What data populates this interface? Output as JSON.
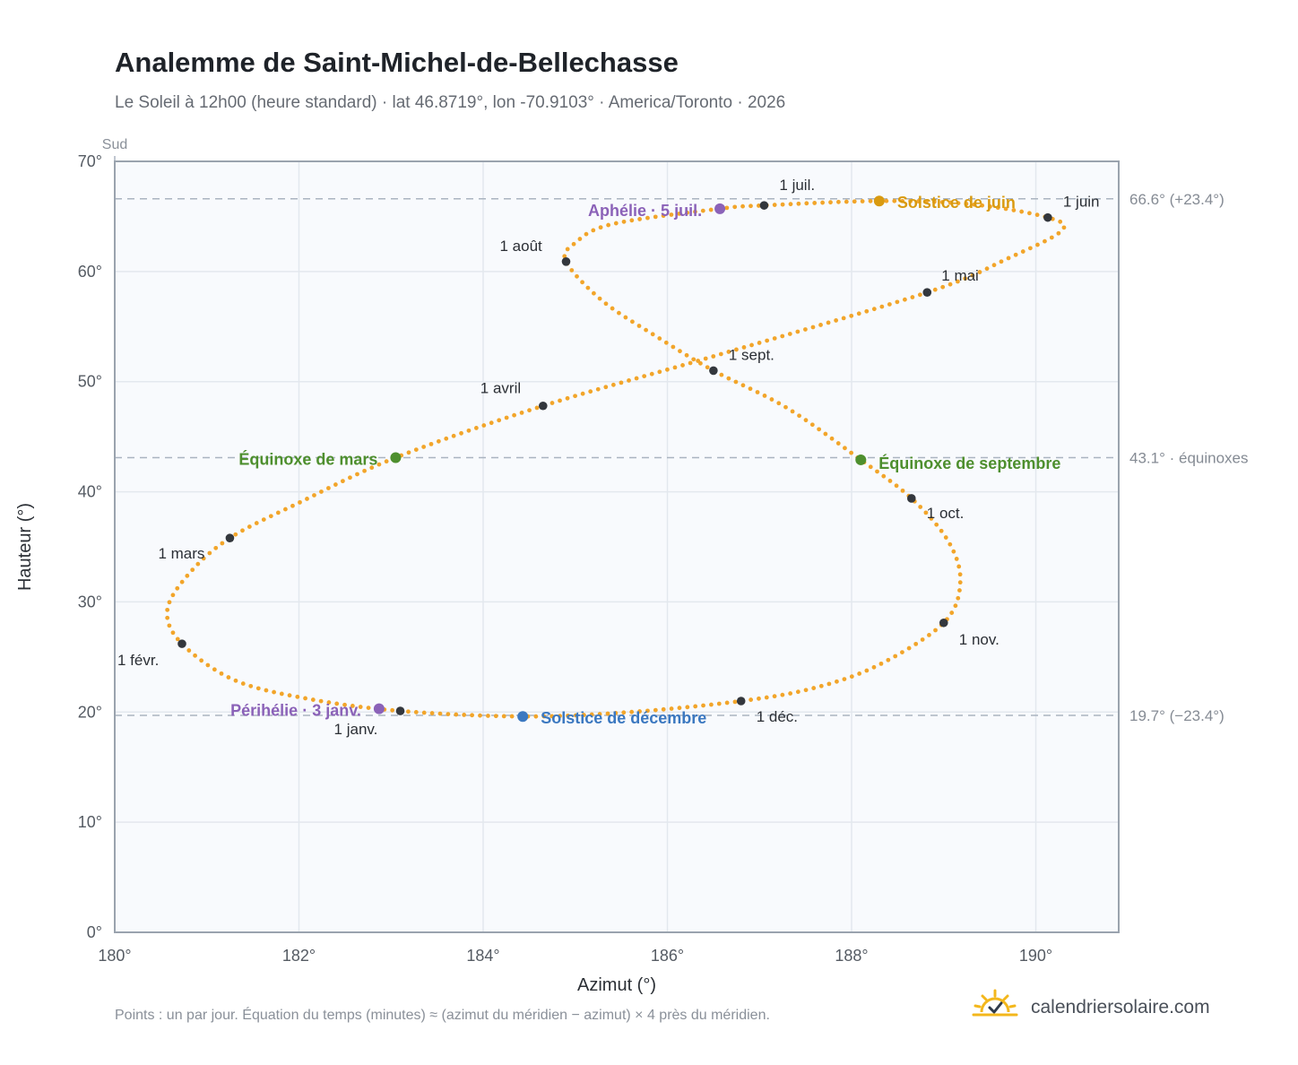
{
  "header": {
    "title": "Analemme de Saint-Michel-de-Bellechasse",
    "subtitle": "Le Soleil à 12h00 (heure standard) · lat 46.8719°, lon -70.9103° · America/Toronto · 2026"
  },
  "footer": {
    "note": "Points : un par jour. Équation du temps (minutes) ≈ (azimut du méridien − azimut) × 4 près du méridien.",
    "brand": "calendriersolaire.com",
    "brand_icon": "sun-check-icon"
  },
  "colors": {
    "path": "#f2a52a",
    "month_dot": "#33373d",
    "solstice_june": "#d99a10",
    "solstice_december": "#3b78c0",
    "equinox": "#4e8f2e",
    "perihelion": "#8b62b8",
    "grid": "#e3e8ee",
    "reference_line": "#aab4c0",
    "plot_background": "#f8fafd",
    "frame": "#9aa3ae"
  },
  "chart_data": {
    "type": "scatter",
    "title": "Analemme de Saint-Michel-de-Bellechasse",
    "xlabel": "Azimut (°)",
    "ylabel": "Hauteur (°)",
    "xlim": [
      180,
      190.9
    ],
    "ylim": [
      0,
      70
    ],
    "x_ticks": [
      180,
      182,
      184,
      186,
      188,
      190
    ],
    "y_ticks": [
      0,
      10,
      20,
      30,
      40,
      50,
      60,
      70
    ],
    "x_tick_labels": [
      "180°",
      "182°",
      "184°",
      "186°",
      "188°",
      "190°"
    ],
    "y_tick_labels": [
      "0°",
      "10°",
      "20°",
      "30°",
      "40°",
      "50°",
      "60°",
      "70°"
    ],
    "grid": true,
    "meridian_label": "Sud",
    "reference_lines": [
      {
        "y": 66.6,
        "label": "66.6° (+23.4°)"
      },
      {
        "y": 43.1,
        "label": "43.1° · équinoxes"
      },
      {
        "y": 19.7,
        "label": "19.7° (−23.4°)"
      }
    ],
    "monthly_points": [
      {
        "label": "1 janv.",
        "x": 183.1,
        "y": 20.1
      },
      {
        "label": "1 févr.",
        "x": 180.73,
        "y": 26.2
      },
      {
        "label": "1 mars",
        "x": 181.25,
        "y": 35.8
      },
      {
        "label": "1 avril",
        "x": 184.65,
        "y": 47.8
      },
      {
        "label": "1 mai",
        "x": 188.82,
        "y": 58.1
      },
      {
        "label": "1 juin",
        "x": 190.13,
        "y": 64.9
      },
      {
        "label": "1 juil.",
        "x": 187.05,
        "y": 66.0
      },
      {
        "label": "1 août",
        "x": 184.9,
        "y": 60.9
      },
      {
        "label": "1 sept.",
        "x": 186.5,
        "y": 51.0
      },
      {
        "label": "1 oct.",
        "x": 188.65,
        "y": 39.4
      },
      {
        "label": "1 nov.",
        "x": 189.0,
        "y": 28.1
      },
      {
        "label": "1 déc.",
        "x": 186.8,
        "y": 21.0
      }
    ],
    "events": [
      {
        "label": "Solstice de juin",
        "x": 188.3,
        "y": 66.4,
        "kind": "solstice_june"
      },
      {
        "label": "Solstice de décembre",
        "x": 184.43,
        "y": 19.6,
        "kind": "solstice_december"
      },
      {
        "label": "Équinoxe de mars",
        "x": 183.05,
        "y": 43.1,
        "kind": "equinox"
      },
      {
        "label": "Équinoxe de septembre",
        "x": 188.1,
        "y": 42.9,
        "kind": "equinox"
      },
      {
        "label": "Périhélie · 3 janv.",
        "x": 182.87,
        "y": 20.3,
        "kind": "perihelion"
      },
      {
        "label": "Aphélie · 5 juil.",
        "x": 186.57,
        "y": 65.7,
        "kind": "aphelion"
      }
    ],
    "analemma_path": [
      {
        "x": 183.1,
        "y": 20.1
      },
      {
        "x": 182.1,
        "y": 21.2
      },
      {
        "x": 181.3,
        "y": 22.9
      },
      {
        "x": 180.73,
        "y": 26.2
      },
      {
        "x": 180.57,
        "y": 29.2
      },
      {
        "x": 180.8,
        "y": 32.5
      },
      {
        "x": 181.25,
        "y": 35.8
      },
      {
        "x": 182.0,
        "y": 39.0
      },
      {
        "x": 183.05,
        "y": 43.1
      },
      {
        "x": 184.65,
        "y": 47.8
      },
      {
        "x": 186.5,
        "y": 52.3
      },
      {
        "x": 188.82,
        "y": 58.1
      },
      {
        "x": 189.7,
        "y": 61.2
      },
      {
        "x": 190.28,
        "y": 63.7
      },
      {
        "x": 190.13,
        "y": 64.9
      },
      {
        "x": 189.3,
        "y": 66.1
      },
      {
        "x": 188.3,
        "y": 66.4
      },
      {
        "x": 187.05,
        "y": 66.0
      },
      {
        "x": 186.57,
        "y": 65.7
      },
      {
        "x": 185.4,
        "y": 64.3
      },
      {
        "x": 185.0,
        "y": 62.6
      },
      {
        "x": 184.9,
        "y": 60.9
      },
      {
        "x": 185.3,
        "y": 57.3
      },
      {
        "x": 185.9,
        "y": 54.0
      },
      {
        "x": 186.5,
        "y": 51.0
      },
      {
        "x": 187.3,
        "y": 47.6
      },
      {
        "x": 188.1,
        "y": 42.9
      },
      {
        "x": 188.65,
        "y": 39.4
      },
      {
        "x": 189.05,
        "y": 35.5
      },
      {
        "x": 189.18,
        "y": 31.8
      },
      {
        "x": 189.0,
        "y": 28.1
      },
      {
        "x": 188.3,
        "y": 24.3
      },
      {
        "x": 187.6,
        "y": 22.2
      },
      {
        "x": 186.8,
        "y": 21.0
      },
      {
        "x": 185.6,
        "y": 20.0
      },
      {
        "x": 184.43,
        "y": 19.6
      },
      {
        "x": 183.1,
        "y": 20.1
      }
    ]
  }
}
